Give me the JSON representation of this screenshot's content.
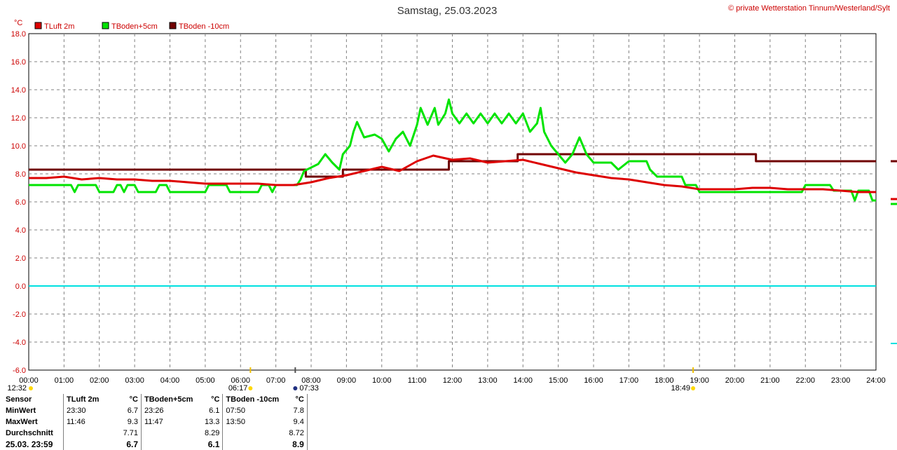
{
  "title": "Samstag, 25.03.2023",
  "copyright": "© private Wetterstation Tinnum/Westerland/Sylt",
  "y_unit": "°C",
  "colors": {
    "tluft": "#dd0000",
    "tboden5": "#00e400",
    "tboden10": "#700000",
    "zero_line": "#00e0e0",
    "grid": "#808080"
  },
  "chart_data": {
    "type": "line",
    "ylim": [
      -6,
      18
    ],
    "y_ticks": [
      "18.0",
      "16.0",
      "14.0",
      "12.0",
      "10.0",
      "8.0",
      "6.0",
      "4.0",
      "2.0",
      "0.0",
      "-2.0",
      "-4.0",
      "-6.0"
    ],
    "x_ticks": [
      "00:00",
      "01:00",
      "02:00",
      "03:00",
      "04:00",
      "05:00",
      "06:00",
      "07:00",
      "08:00",
      "09:00",
      "10:00",
      "11:00",
      "12:00",
      "13:00",
      "14:00",
      "15:00",
      "16:00",
      "17:00",
      "18:00",
      "19:00",
      "20:00",
      "21:00",
      "22:00",
      "23:00",
      "24:00"
    ],
    "xlim_hours": [
      0,
      24
    ],
    "markers": [
      {
        "label": "12:32",
        "hour": 0.0
      },
      {
        "label": "06:17",
        "hour": 6.28
      },
      {
        "label": "07:33",
        "hour": 7.55
      },
      {
        "label": "18:49",
        "hour": 18.82
      }
    ],
    "series": [
      {
        "name": "TLuft 2m",
        "points": [
          [
            0,
            7.7
          ],
          [
            0.5,
            7.7
          ],
          [
            1.0,
            7.8
          ],
          [
            1.5,
            7.6
          ],
          [
            2.0,
            7.7
          ],
          [
            2.5,
            7.6
          ],
          [
            3.0,
            7.6
          ],
          [
            3.5,
            7.5
          ],
          [
            4.0,
            7.5
          ],
          [
            4.5,
            7.4
          ],
          [
            5.0,
            7.3
          ],
          [
            5.5,
            7.3
          ],
          [
            6.0,
            7.3
          ],
          [
            6.5,
            7.3
          ],
          [
            7.0,
            7.2
          ],
          [
            7.5,
            7.2
          ],
          [
            8.0,
            7.4
          ],
          [
            8.5,
            7.7
          ],
          [
            9.0,
            7.9
          ],
          [
            9.5,
            8.2
          ],
          [
            10.0,
            8.5
          ],
          [
            10.5,
            8.2
          ],
          [
            11.0,
            8.9
          ],
          [
            11.46,
            9.3
          ],
          [
            12.0,
            9.0
          ],
          [
            12.5,
            9.1
          ],
          [
            13.0,
            8.8
          ],
          [
            13.5,
            8.9
          ],
          [
            14.0,
            9.0
          ],
          [
            14.5,
            8.7
          ],
          [
            15.0,
            8.4
          ],
          [
            15.5,
            8.1
          ],
          [
            16.0,
            7.9
          ],
          [
            16.5,
            7.7
          ],
          [
            17.0,
            7.6
          ],
          [
            17.5,
            7.4
          ],
          [
            18.0,
            7.2
          ],
          [
            18.5,
            7.1
          ],
          [
            19.0,
            6.9
          ],
          [
            19.5,
            6.9
          ],
          [
            20.0,
            6.9
          ],
          [
            20.5,
            7.0
          ],
          [
            21.0,
            7.0
          ],
          [
            21.5,
            6.9
          ],
          [
            22.0,
            6.9
          ],
          [
            22.5,
            6.9
          ],
          [
            23.0,
            6.8
          ],
          [
            23.5,
            6.7
          ],
          [
            24.0,
            6.7
          ]
        ]
      },
      {
        "name": "TBoden+5cm",
        "points": [
          [
            0,
            7.2
          ],
          [
            1.2,
            7.2
          ],
          [
            1.3,
            6.7
          ],
          [
            1.4,
            7.2
          ],
          [
            1.9,
            7.2
          ],
          [
            2.0,
            6.7
          ],
          [
            2.4,
            6.7
          ],
          [
            2.5,
            7.2
          ],
          [
            2.6,
            7.2
          ],
          [
            2.7,
            6.7
          ],
          [
            2.8,
            7.2
          ],
          [
            3.0,
            7.2
          ],
          [
            3.1,
            6.7
          ],
          [
            3.6,
            6.7
          ],
          [
            3.7,
            7.2
          ],
          [
            3.9,
            7.2
          ],
          [
            4.0,
            6.7
          ],
          [
            5.0,
            6.7
          ],
          [
            5.1,
            7.2
          ],
          [
            5.6,
            7.2
          ],
          [
            5.7,
            6.7
          ],
          [
            6.5,
            6.7
          ],
          [
            6.6,
            7.2
          ],
          [
            6.8,
            7.2
          ],
          [
            6.9,
            6.7
          ],
          [
            7.0,
            7.2
          ],
          [
            7.6,
            7.2
          ],
          [
            7.7,
            7.6
          ],
          [
            7.8,
            8.2
          ],
          [
            8.2,
            8.7
          ],
          [
            8.4,
            9.4
          ],
          [
            8.6,
            8.8
          ],
          [
            8.8,
            8.3
          ],
          [
            8.9,
            9.4
          ],
          [
            9.1,
            10.0
          ],
          [
            9.2,
            11.0
          ],
          [
            9.3,
            11.7
          ],
          [
            9.5,
            10.6
          ],
          [
            9.8,
            10.8
          ],
          [
            10.0,
            10.5
          ],
          [
            10.2,
            9.6
          ],
          [
            10.4,
            10.5
          ],
          [
            10.6,
            11.0
          ],
          [
            10.8,
            10.0
          ],
          [
            11.0,
            11.5
          ],
          [
            11.1,
            12.7
          ],
          [
            11.3,
            11.5
          ],
          [
            11.5,
            12.7
          ],
          [
            11.6,
            11.5
          ],
          [
            11.8,
            12.3
          ],
          [
            11.9,
            13.3
          ],
          [
            12.0,
            12.3
          ],
          [
            12.2,
            11.6
          ],
          [
            12.4,
            12.3
          ],
          [
            12.6,
            11.6
          ],
          [
            12.8,
            12.3
          ],
          [
            13.0,
            11.6
          ],
          [
            13.2,
            12.3
          ],
          [
            13.4,
            11.6
          ],
          [
            13.6,
            12.3
          ],
          [
            13.8,
            11.6
          ],
          [
            14.0,
            12.3
          ],
          [
            14.2,
            11.0
          ],
          [
            14.4,
            11.6
          ],
          [
            14.5,
            12.7
          ],
          [
            14.6,
            11.0
          ],
          [
            14.8,
            10.0
          ],
          [
            15.0,
            9.4
          ],
          [
            15.2,
            8.8
          ],
          [
            15.4,
            9.4
          ],
          [
            15.6,
            10.6
          ],
          [
            15.8,
            9.4
          ],
          [
            16.0,
            8.8
          ],
          [
            16.5,
            8.8
          ],
          [
            16.7,
            8.3
          ],
          [
            17.0,
            8.9
          ],
          [
            17.5,
            8.9
          ],
          [
            17.6,
            8.3
          ],
          [
            17.8,
            7.8
          ],
          [
            18.5,
            7.8
          ],
          [
            18.6,
            7.2
          ],
          [
            18.9,
            7.2
          ],
          [
            19.0,
            6.7
          ],
          [
            21.0,
            6.7
          ],
          [
            21.9,
            6.7
          ],
          [
            22.0,
            7.2
          ],
          [
            22.7,
            7.2
          ],
          [
            22.8,
            6.8
          ],
          [
            23.3,
            6.8
          ],
          [
            23.4,
            6.1
          ],
          [
            23.5,
            6.8
          ],
          [
            23.8,
            6.8
          ],
          [
            23.9,
            6.1
          ],
          [
            24.0,
            6.1
          ]
        ]
      },
      {
        "name": "TBoden -10cm",
        "points": [
          [
            0,
            8.3
          ],
          [
            7.85,
            8.3
          ],
          [
            7.85,
            7.8
          ],
          [
            8.9,
            7.8
          ],
          [
            8.9,
            8.3
          ],
          [
            11.9,
            8.3
          ],
          [
            11.9,
            8.9
          ],
          [
            13.85,
            8.9
          ],
          [
            13.85,
            9.4
          ],
          [
            20.6,
            9.4
          ],
          [
            20.6,
            8.9
          ],
          [
            24.0,
            8.9
          ]
        ]
      }
    ]
  },
  "stats": {
    "headers": [
      "Sensor",
      "TLuft 2m",
      "°C",
      "TBoden+5cm",
      "°C",
      "TBoden -10cm",
      "°C"
    ],
    "rows": [
      {
        "label": "MinWert",
        "c": [
          "23:30",
          "6.7",
          "23:26",
          "6.1",
          "07:50",
          "7.8"
        ]
      },
      {
        "label": "MaxWert",
        "c": [
          "11:46",
          "9.3",
          "11:47",
          "13.3",
          "13:50",
          "9.4"
        ]
      },
      {
        "label": "Durchschnitt",
        "c": [
          "",
          "7.71",
          "",
          "8.29",
          "",
          "8.72"
        ]
      },
      {
        "label": "25.03. 23:59",
        "c": [
          "",
          "6.7",
          "",
          "6.1",
          "",
          "8.9"
        ]
      }
    ]
  }
}
